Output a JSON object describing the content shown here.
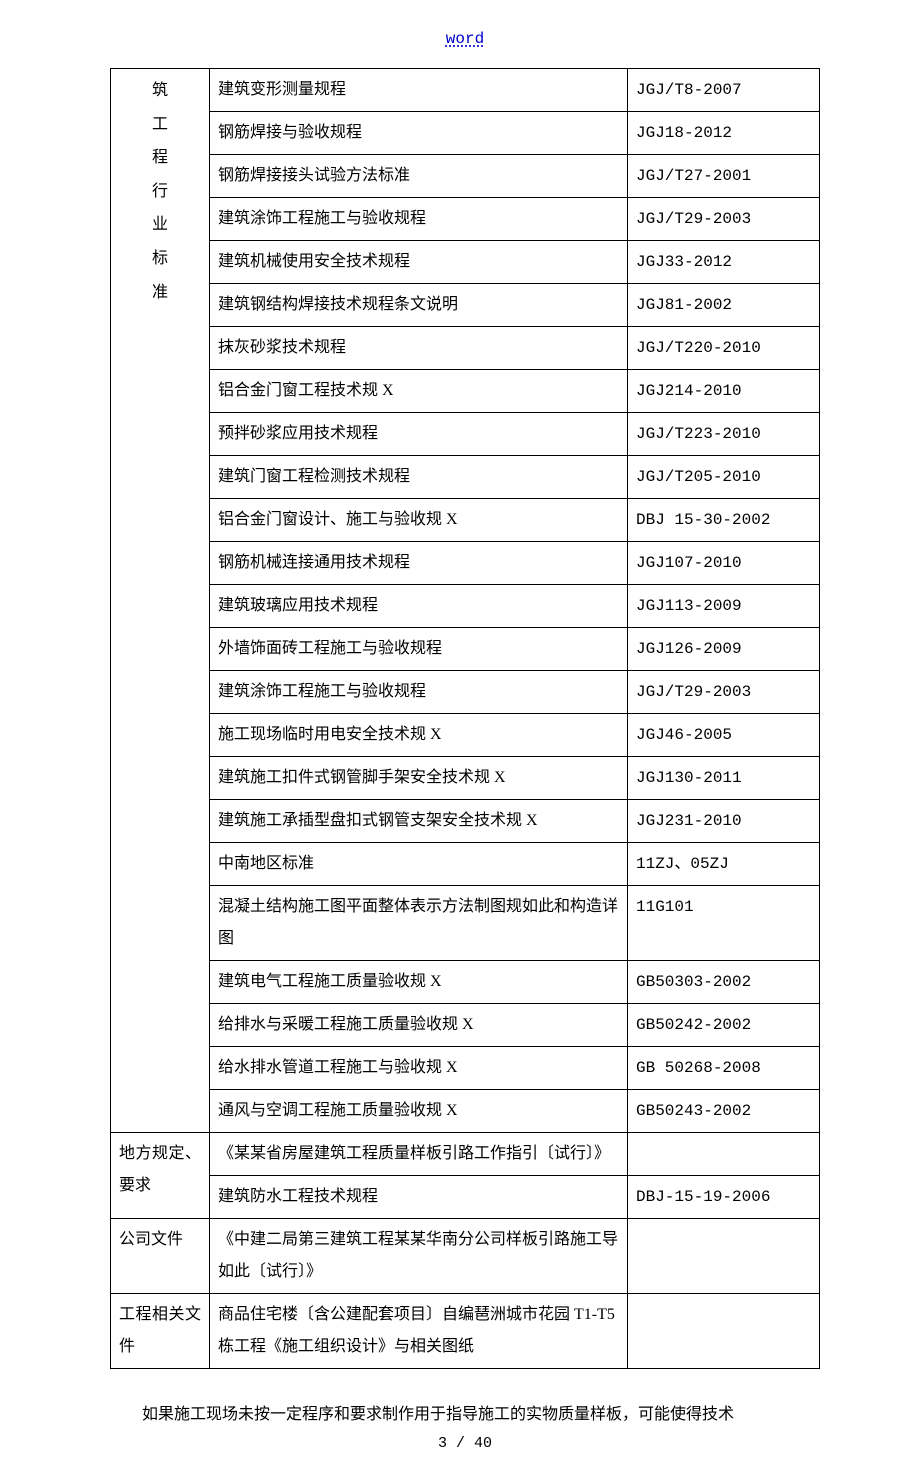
{
  "header": {
    "link": "word"
  },
  "table": {
    "group1": {
      "label_chars": [
        "筑",
        "工",
        "程",
        "行",
        "业",
        "标",
        "准"
      ],
      "rows": [
        {
          "name": "建筑变形测量规程",
          "code": "JGJ/T8-2007"
        },
        {
          "name": "钢筋焊接与验收规程",
          "code": "JGJ18-2012"
        },
        {
          "name": "钢筋焊接接头试验方法标准",
          "code": "JGJ/T27-2001"
        },
        {
          "name": "建筑涂饰工程施工与验收规程",
          "code": "JGJ/T29-2003"
        },
        {
          "name": "建筑机械使用安全技术规程",
          "code": "JGJ33-2012"
        },
        {
          "name": "建筑钢结构焊接技术规程条文说明",
          "code": "JGJ81-2002"
        },
        {
          "name": "抹灰砂浆技术规程",
          "code": "JGJ/T220-2010"
        },
        {
          "name": "铝合金门窗工程技术规 X",
          "code": "JGJ214-2010"
        },
        {
          "name": "预拌砂浆应用技术规程",
          "code": "JGJ/T223-2010"
        },
        {
          "name": "建筑门窗工程检测技术规程",
          "code": "JGJ/T205-2010"
        },
        {
          "name": "铝合金门窗设计、施工与验收规 X",
          "code": "DBJ 15-30-2002"
        },
        {
          "name": "钢筋机械连接通用技术规程",
          "code": "JGJ107-2010"
        },
        {
          "name": "建筑玻璃应用技术规程",
          "code": "JGJ113-2009"
        },
        {
          "name": "外墙饰面砖工程施工与验收规程",
          "code": "JGJ126-2009"
        },
        {
          "name": "建筑涂饰工程施工与验收规程",
          "code": "JGJ/T29-2003"
        },
        {
          "name": "施工现场临时用电安全技术规 X",
          "code": "JGJ46-2005"
        },
        {
          "name": "建筑施工扣件式钢管脚手架安全技术规 X",
          "code": "JGJ130-2011"
        },
        {
          "name": "建筑施工承插型盘扣式钢管支架安全技术规 X",
          "code": "JGJ231-2010"
        },
        {
          "name": "中南地区标准",
          "code": "11ZJ、05ZJ"
        },
        {
          "name": "混凝土结构施工图平面整体表示方法制图规如此和构造详图",
          "code": "11G101"
        },
        {
          "name": "建筑电气工程施工质量验收规 X",
          "code": "GB50303-2002"
        },
        {
          "name": "给排水与采暖工程施工质量验收规 X",
          "code": "GB50242-2002"
        },
        {
          "name": "给水排水管道工程施工与验收规 X",
          "code": "GB 50268-2008"
        },
        {
          "name": "通风与空调工程施工质量验收规 X",
          "code": "GB50243-2002"
        }
      ]
    },
    "group2": {
      "label": "地方规定、要求",
      "rows": [
        {
          "name": "《某某省房屋建筑工程质量样板引路工作指引〔试行〕》",
          "code": ""
        },
        {
          "name": "建筑防水工程技术规程",
          "code": "DBJ-15-19-2006"
        }
      ]
    },
    "group3": {
      "label": "公司文件",
      "rows": [
        {
          "name": "《中建二局第三建筑工程某某华南分公司样板引路施工导如此〔试行〕》",
          "code": ""
        }
      ]
    },
    "group4": {
      "label": "工程相关文件",
      "rows": [
        {
          "name": "商品住宅楼〔含公建配套项目〕自编琶洲城市花园 T1-T5 栋工程《施工组织设计》与相关图纸",
          "code": ""
        }
      ]
    }
  },
  "body_text": "如果施工现场未按一定程序和要求制作用于指导施工的实物质量样板，可能使得技术",
  "footer": {
    "page": "3",
    "total": "40",
    "sep": " / "
  }
}
